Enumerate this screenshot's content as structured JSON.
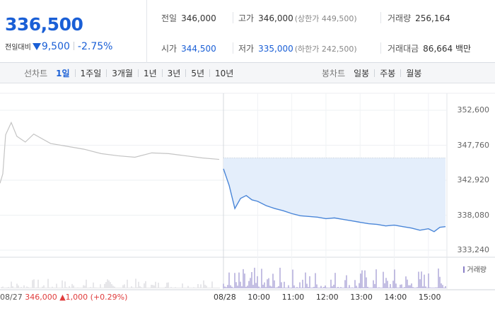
{
  "quote": {
    "price": "336,500",
    "change_label": "전일대비",
    "change_abs": "9,500",
    "change_pct": "-2.75%",
    "color_down": "#1a5fd6",
    "color_up": "#e03c3c"
  },
  "stats": {
    "prev_close_label": "전일",
    "prev_close": "346,000",
    "high_label": "고가",
    "high": "346,000",
    "upper_limit": "(상한가 449,500)",
    "volume_label": "거래량",
    "volume": "256,164",
    "open_label": "시가",
    "open": "344,500",
    "low_label": "저가",
    "low": "335,000",
    "lower_limit": "(하한가 242,500)",
    "amount_label": "거래대금",
    "amount": "86,664 백만"
  },
  "tabs": {
    "line_title": "선차트",
    "line": [
      "1일",
      "1주일",
      "3개월",
      "1년",
      "3년",
      "5년",
      "10년"
    ],
    "line_active": 0,
    "candle_title": "봉차트",
    "candle": [
      "일봉",
      "주봉",
      "월봉"
    ]
  },
  "chart_data": {
    "type": "line",
    "y_ticks": [
      "352,600",
      "347,760",
      "342,920",
      "338,080",
      "333,240"
    ],
    "ylim": [
      333240,
      352600
    ],
    "x_ticks": [
      "08/28",
      "10:00",
      "11:00",
      "12:00",
      "13:00",
      "14:00",
      "15:00"
    ],
    "prev_day": {
      "date": "08/27",
      "close": "346,000",
      "change": "▲1,000",
      "change_pct": "(+0.29%)",
      "x": [
        "09:00",
        "09:05",
        "09:10",
        "09:20",
        "09:30",
        "09:45",
        "10:00",
        "10:30",
        "11:00",
        "11:30",
        "12:00",
        "12:30",
        "13:00",
        "13:30",
        "14:00",
        "14:30",
        "15:00",
        "15:30"
      ],
      "values": [
        342500,
        343800,
        349200,
        350900,
        349000,
        348200,
        349300,
        348000,
        347600,
        347200,
        346600,
        346300,
        346100,
        346700,
        346600,
        346300,
        346000,
        345800
      ]
    },
    "today": {
      "date": "08/28",
      "x": [
        "09:00",
        "09:10",
        "09:20",
        "09:30",
        "09:40",
        "09:50",
        "10:00",
        "10:15",
        "10:30",
        "10:45",
        "11:00",
        "11:15",
        "11:30",
        "11:45",
        "12:00",
        "12:15",
        "12:30",
        "12:45",
        "13:00",
        "13:15",
        "13:30",
        "13:45",
        "14:00",
        "14:15",
        "14:30",
        "14:45",
        "15:00",
        "15:10",
        "15:20",
        "15:30"
      ],
      "values": [
        344500,
        342200,
        339000,
        340400,
        340800,
        340200,
        340000,
        339400,
        339000,
        338700,
        338300,
        338000,
        337900,
        337800,
        337600,
        337700,
        337500,
        337300,
        337100,
        336900,
        336800,
        336600,
        336700,
        336500,
        336300,
        336000,
        336200,
        335800,
        336400,
        336500
      ]
    },
    "reference_price": 346000,
    "line_color": "#4a86d8",
    "prev_line_color": "#c4c4c4",
    "fill_color": "#e4eefb",
    "volume_legend": "거래량",
    "volume_color": "#8a7fc7"
  }
}
